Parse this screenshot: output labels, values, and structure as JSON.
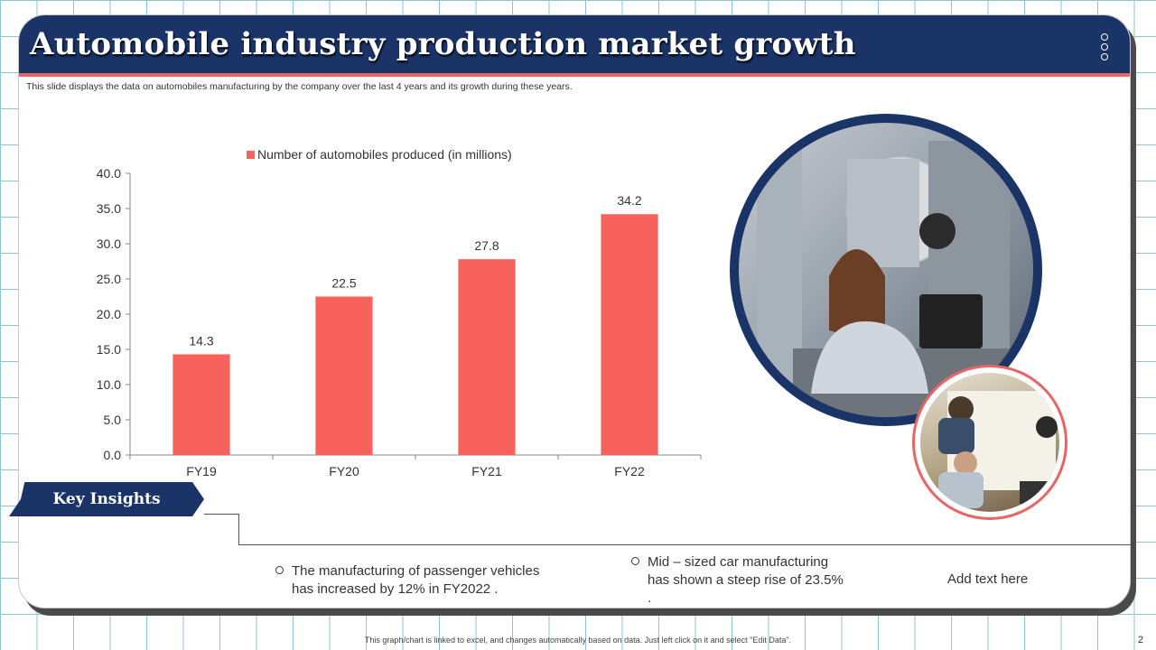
{
  "header": {
    "title": "Automobile industry production market growth",
    "subtitle": "This slide displays the data on automobiles manufacturing by the company over the last  4 years and its growth during these years."
  },
  "chart_data": {
    "type": "bar",
    "categories": [
      "FY19",
      "FY20",
      "FY21",
      "FY22"
    ],
    "series": [
      {
        "name": "Number of automobiles produced (in millions)",
        "values": [
          14.3,
          22.5,
          27.8,
          34.2
        ]
      }
    ],
    "data_labels": [
      "14.3",
      "22.5",
      "27.8",
      "34.2"
    ],
    "ylim": [
      0,
      40
    ],
    "yticks": [
      "0.0",
      "5.0",
      "10.0",
      "15.0",
      "20.0",
      "25.0",
      "30.0",
      "35.0",
      "40.0"
    ],
    "legend_position": "top",
    "grid": false,
    "bar_color": "#f7625d"
  },
  "insights": {
    "tab_label": "Key Insights",
    "items": [
      {
        "line1": "The manufacturing  of passenger vehicles",
        "line2": "has increased by 12% in FY2022 ."
      },
      {
        "line1": "Mid – sized car manufacturing",
        "line2": "has shown  a steep rise of 23.5%",
        "line3": "."
      },
      {
        "line1": "Add text here"
      }
    ]
  },
  "footer": {
    "note": "This graph/chart is linked to excel, and changes automatically based on data. Just left click on it and select \"Edit Data\".",
    "page_number": "2"
  },
  "colors": {
    "header_bg": "#1b3468",
    "accent": "#e96565",
    "bar": "#f7625d"
  }
}
